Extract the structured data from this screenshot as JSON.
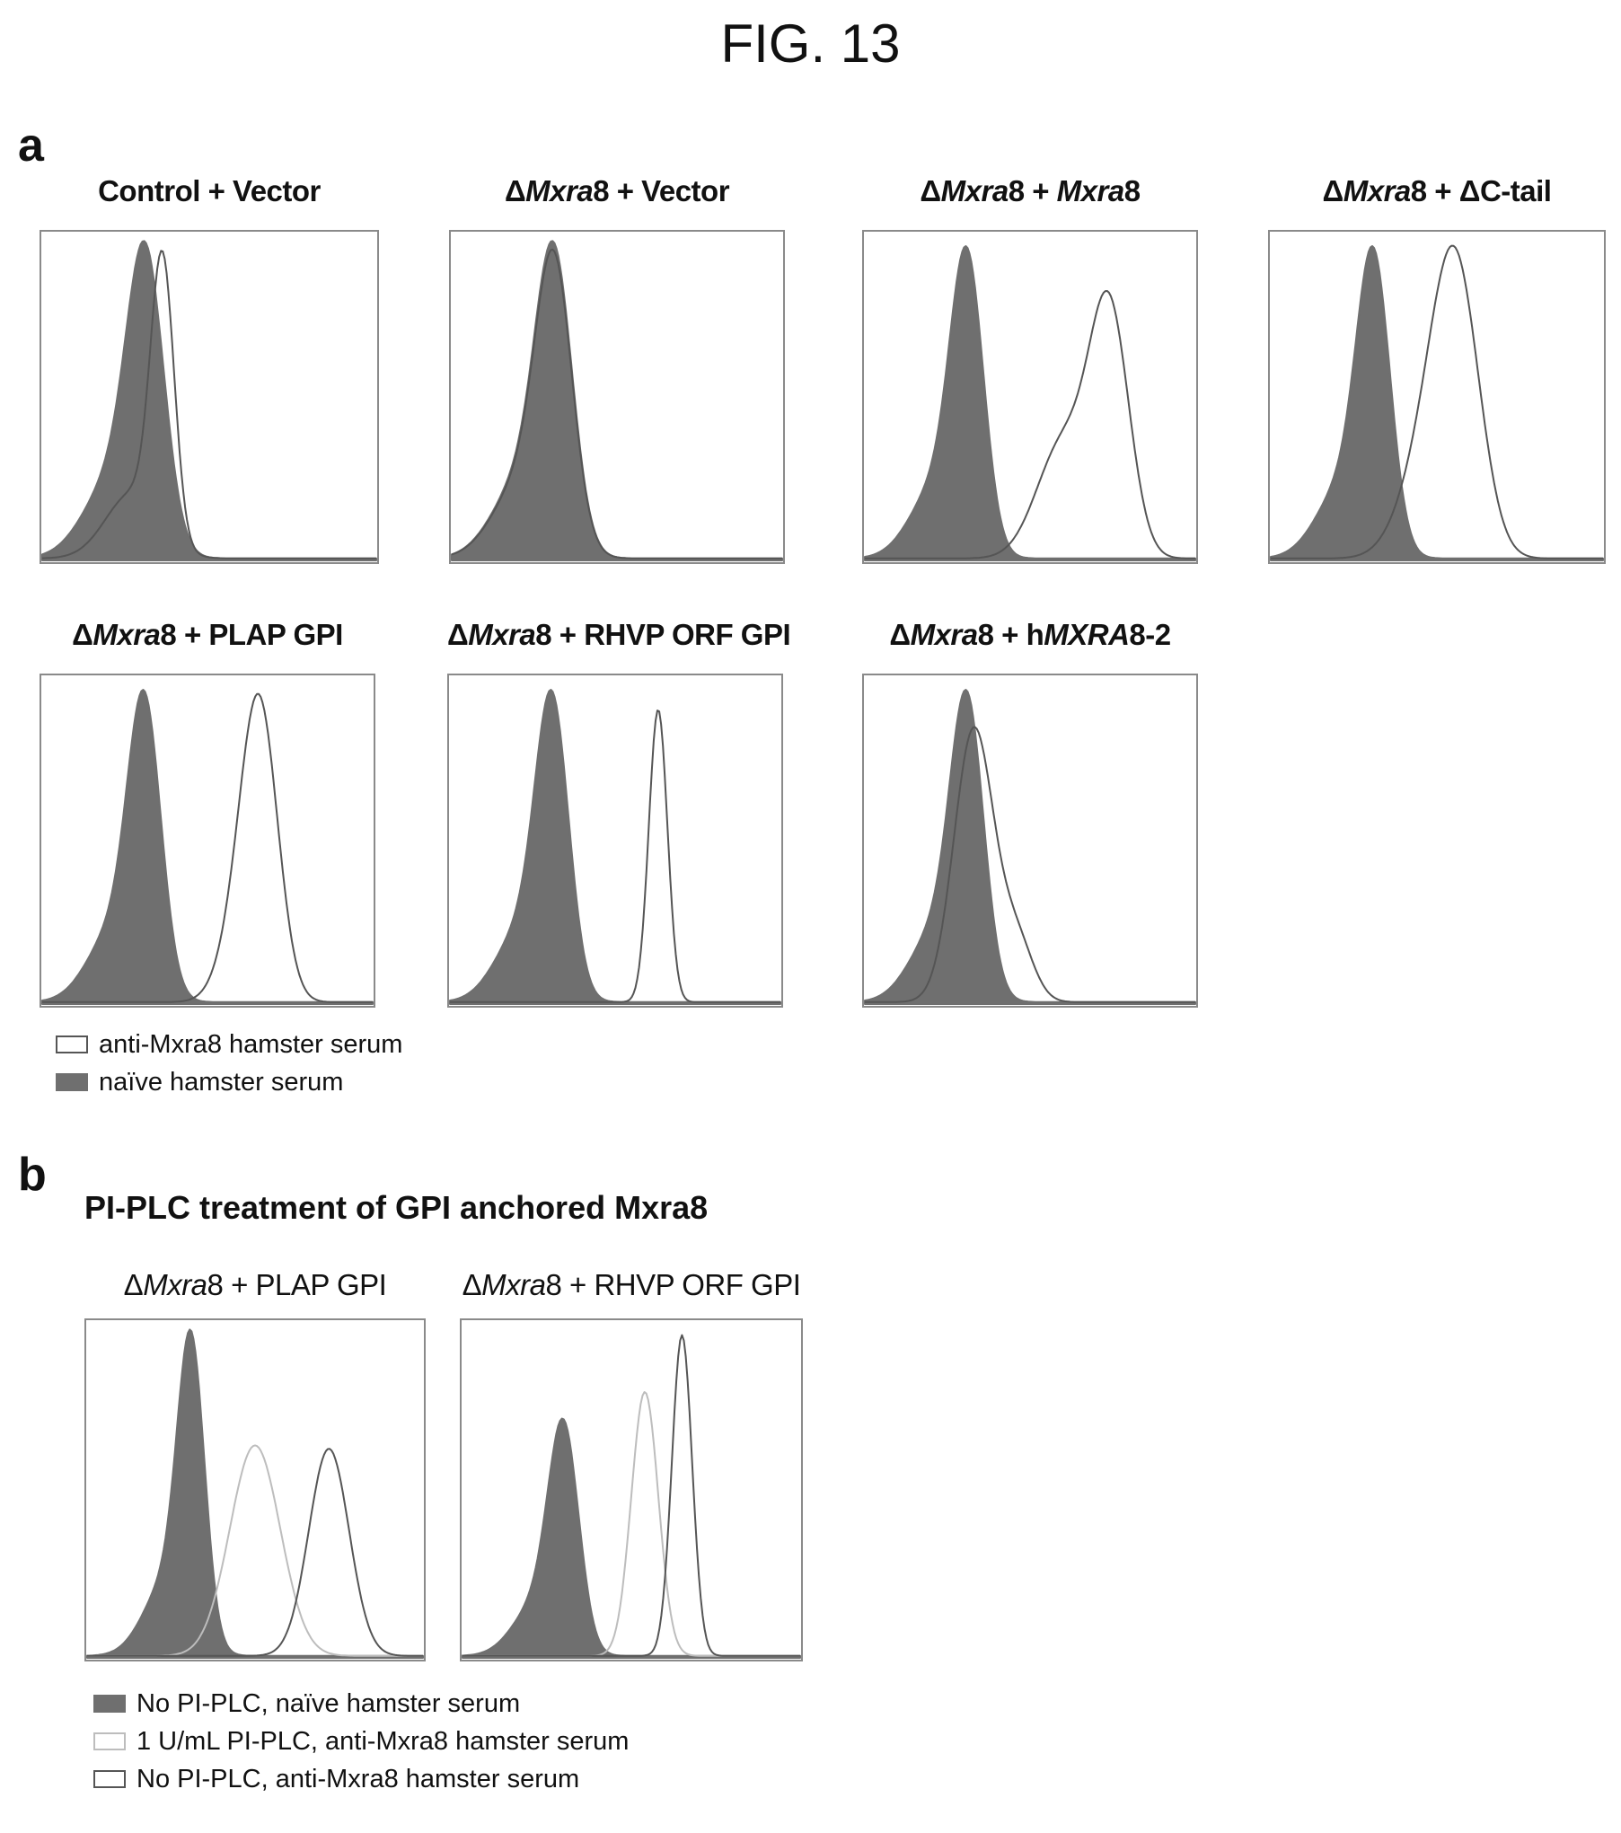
{
  "figure_title": "FIG. 13",
  "panel_a": {
    "letter": "a",
    "legend": [
      {
        "label": "anti-Mxra8 hamster serum",
        "style": "hollow"
      },
      {
        "label": "naïve hamster serum",
        "style": "filled"
      }
    ]
  },
  "panel_b": {
    "letter": "b",
    "title": "PI-PLC treatment of GPI anchored Mxra8",
    "legend": [
      {
        "label": "No PI-PLC, naïve hamster  serum",
        "style": "filled"
      },
      {
        "label": "1 U/mL PI-PLC, anti-Mxra8 hamster serum",
        "style": "light"
      },
      {
        "label": "No PI-PLC, anti-Mxra8 hamster serum",
        "style": "hollow"
      }
    ]
  },
  "colors": {
    "filled": "#6f6f6f",
    "outline_dark": "#555555",
    "outline_light": "#bdbdbd",
    "frame": "#8a8a8a"
  },
  "chart_data": [
    {
      "type": "area",
      "panel": "a",
      "title_parts": [
        {
          "t": "Control + Vector"
        }
      ],
      "series": [
        {
          "name": "naïve hamster serum",
          "style": "filled",
          "peaks": [
            {
              "mu": 0.31,
              "sigma": 0.055,
              "h": 0.82
            },
            {
              "mu": 0.22,
              "sigma": 0.09,
              "h": 0.25
            }
          ]
        },
        {
          "name": "anti-Mxra8 hamster serum",
          "style": "hollow",
          "peaks": [
            {
              "mu": 0.36,
              "sigma": 0.035,
              "h": 0.84
            },
            {
              "mu": 0.27,
              "sigma": 0.08,
              "h": 0.2
            }
          ]
        }
      ]
    },
    {
      "type": "area",
      "panel": "a",
      "title_parts": [
        {
          "t": "Δ"
        },
        {
          "t": "Mxra",
          "i": true
        },
        {
          "t": "8 + Vector"
        }
      ],
      "series": [
        {
          "name": "naïve hamster serum",
          "style": "filled",
          "peaks": [
            {
              "mu": 0.31,
              "sigma": 0.055,
              "h": 0.82
            },
            {
              "mu": 0.22,
              "sigma": 0.09,
              "h": 0.25
            }
          ]
        },
        {
          "name": "anti-Mxra8 hamster serum",
          "style": "hollow",
          "peaks": [
            {
              "mu": 0.31,
              "sigma": 0.055,
              "h": 0.8
            },
            {
              "mu": 0.22,
              "sigma": 0.09,
              "h": 0.24
            }
          ]
        }
      ]
    },
    {
      "type": "area",
      "panel": "a",
      "title_parts": [
        {
          "t": "Δ"
        },
        {
          "t": "Mxra",
          "i": true
        },
        {
          "t": "8 + "
        },
        {
          "t": "Mxra",
          "i": true
        },
        {
          "t": "8"
        }
      ],
      "series": [
        {
          "name": "naïve hamster serum",
          "style": "filled",
          "peaks": [
            {
              "mu": 0.31,
              "sigma": 0.05,
              "h": 0.84
            },
            {
              "mu": 0.22,
              "sigma": 0.08,
              "h": 0.22
            }
          ]
        },
        {
          "name": "anti-Mxra8 hamster serum",
          "style": "hollow",
          "peaks": [
            {
              "mu": 0.74,
              "sigma": 0.06,
              "h": 0.74
            },
            {
              "mu": 0.6,
              "sigma": 0.08,
              "h": 0.35
            }
          ]
        }
      ]
    },
    {
      "type": "area",
      "panel": "a",
      "title_parts": [
        {
          "t": "Δ"
        },
        {
          "t": "Mxra",
          "i": true
        },
        {
          "t": "8 + ΔC-tail"
        }
      ],
      "series": [
        {
          "name": "naïve hamster serum",
          "style": "filled",
          "peaks": [
            {
              "mu": 0.31,
              "sigma": 0.05,
              "h": 0.84
            },
            {
              "mu": 0.22,
              "sigma": 0.08,
              "h": 0.22
            }
          ]
        },
        {
          "name": "anti-Mxra8 hamster serum",
          "style": "hollow",
          "peaks": [
            {
              "mu": 0.56,
              "sigma": 0.07,
              "h": 0.8
            },
            {
              "mu": 0.47,
              "sigma": 0.08,
              "h": 0.28
            }
          ]
        }
      ]
    },
    {
      "type": "area",
      "panel": "a",
      "title_parts": [
        {
          "t": "Δ"
        },
        {
          "t": "Mxra",
          "i": true
        },
        {
          "t": "8 + PLAP GPI"
        }
      ],
      "series": [
        {
          "name": "naïve hamster serum",
          "style": "filled",
          "peaks": [
            {
              "mu": 0.31,
              "sigma": 0.05,
              "h": 0.84
            },
            {
              "mu": 0.22,
              "sigma": 0.08,
              "h": 0.22
            }
          ]
        },
        {
          "name": "anti-Mxra8 hamster serum",
          "style": "hollow",
          "peaks": [
            {
              "mu": 0.66,
              "sigma": 0.055,
              "h": 0.82
            },
            {
              "mu": 0.6,
              "sigma": 0.06,
              "h": 0.2
            }
          ]
        }
      ]
    },
    {
      "type": "area",
      "panel": "a",
      "title_parts": [
        {
          "t": "Δ"
        },
        {
          "t": "Mxra",
          "i": true
        },
        {
          "t": "8 + RHVP ORF GPI"
        }
      ],
      "series": [
        {
          "name": "naïve hamster serum",
          "style": "filled",
          "peaks": [
            {
              "mu": 0.31,
              "sigma": 0.05,
              "h": 0.84
            },
            {
              "mu": 0.22,
              "sigma": 0.08,
              "h": 0.22
            }
          ]
        },
        {
          "name": "anti-Mxra8 hamster serum",
          "style": "hollow",
          "peaks": [
            {
              "mu": 0.63,
              "sigma": 0.028,
              "h": 0.9
            }
          ]
        }
      ]
    },
    {
      "type": "area",
      "panel": "a",
      "title_parts": [
        {
          "t": "Δ"
        },
        {
          "t": "Mxra",
          "i": true
        },
        {
          "t": "8 + h"
        },
        {
          "t": "MXRA",
          "i": true
        },
        {
          "t": "8-2"
        }
      ],
      "series": [
        {
          "name": "naïve hamster serum",
          "style": "filled",
          "peaks": [
            {
              "mu": 0.31,
              "sigma": 0.05,
              "h": 0.84
            },
            {
              "mu": 0.22,
              "sigma": 0.08,
              "h": 0.22
            }
          ]
        },
        {
          "name": "anti-Mxra8 hamster serum",
          "style": "hollow",
          "peaks": [
            {
              "mu": 0.33,
              "sigma": 0.06,
              "h": 0.84
            },
            {
              "mu": 0.46,
              "sigma": 0.05,
              "h": 0.18
            }
          ]
        }
      ]
    },
    {
      "type": "area",
      "panel": "b",
      "title_parts": [
        {
          "t": "Δ"
        },
        {
          "t": "Mxra",
          "i": true
        },
        {
          "t": "8 + PLAP GPI"
        }
      ],
      "series": [
        {
          "name": "No PI-PLC, naïve hamster  serum",
          "style": "filled",
          "peaks": [
            {
              "mu": 0.31,
              "sigma": 0.04,
              "h": 0.84
            },
            {
              "mu": 0.24,
              "sigma": 0.07,
              "h": 0.22
            }
          ]
        },
        {
          "name": "1 U/mL PI-PLC, anti-Mxra8 hamster serum",
          "style": "light",
          "peaks": [
            {
              "mu": 0.5,
              "sigma": 0.075,
              "h": 0.63
            }
          ]
        },
        {
          "name": "No PI-PLC, anti-Mxra8 hamster serum",
          "style": "hollow",
          "peaks": [
            {
              "mu": 0.72,
              "sigma": 0.06,
              "h": 0.62
            }
          ]
        }
      ]
    },
    {
      "type": "area",
      "panel": "b",
      "title_parts": [
        {
          "t": "Δ"
        },
        {
          "t": "Mxra",
          "i": true
        },
        {
          "t": "8 + RHVP ORF GPI"
        }
      ],
      "series": [
        {
          "name": "No PI-PLC, naïve hamster  serum",
          "style": "filled",
          "peaks": [
            {
              "mu": 0.3,
              "sigma": 0.045,
              "h": 0.63
            },
            {
              "mu": 0.22,
              "sigma": 0.07,
              "h": 0.15
            }
          ]
        },
        {
          "name": "1 U/mL PI-PLC, anti-Mxra8 hamster serum",
          "style": "light",
          "peaks": [
            {
              "mu": 0.54,
              "sigma": 0.04,
              "h": 0.79
            }
          ]
        },
        {
          "name": "No PI-PLC, anti-Mxra8 hamster serum",
          "style": "hollow",
          "peaks": [
            {
              "mu": 0.65,
              "sigma": 0.03,
              "h": 0.96
            }
          ]
        }
      ]
    }
  ]
}
